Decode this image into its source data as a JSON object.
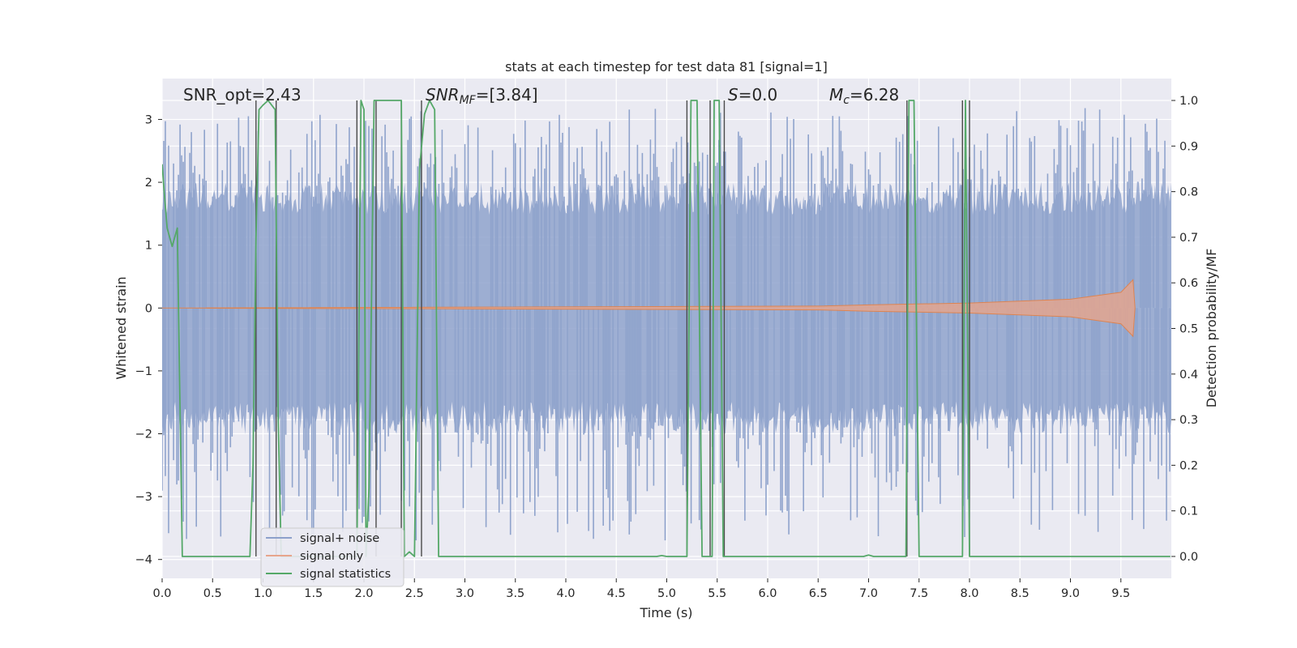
{
  "chart_data": {
    "type": "line",
    "title": "stats at each timestep for test data 81 [signal=1]",
    "xlabel": "Time (s)",
    "ylabel_left": "Whitened strain",
    "ylabel_right": "Detection probability/MF",
    "xlim": [
      0.0,
      10.0
    ],
    "ylim_left": [
      -4.3,
      3.65
    ],
    "ylim_right": [
      -0.048,
      1.048
    ],
    "x_ticks": [
      "0.0",
      "0.5",
      "1.0",
      "1.5",
      "2.0",
      "2.5",
      "3.0",
      "3.5",
      "4.0",
      "4.5",
      "5.0",
      "5.5",
      "6.0",
      "6.5",
      "7.0",
      "7.5",
      "8.0",
      "8.5",
      "9.0",
      "9.5"
    ],
    "y_left_ticks": [
      "−4",
      "−3",
      "−2",
      "−1",
      "0",
      "1",
      "2",
      "3"
    ],
    "y_right_ticks": [
      "0.0",
      "0.1",
      "0.2",
      "0.3",
      "0.4",
      "0.5",
      "0.6",
      "0.7",
      "0.8",
      "0.9",
      "1.0"
    ],
    "grid": true,
    "legend_position": "lower-left",
    "annotations": {
      "snr_opt": "SNR_opt=2.43",
      "snr_mf_name": "SNR",
      "snr_mf_sub": "MF",
      "snr_mf_value": "=[3.84]",
      "s_name": "S",
      "s_value": "=0.0",
      "mc_name": "M",
      "mc_sub": "c",
      "mc_value": "=6.28"
    },
    "series": [
      {
        "name": "signal+ noise",
        "color": "#8da0cb",
        "axis": "left",
        "description_values": {
          "typical_envelope": [
            -1.9,
            1.9
          ],
          "peak_max": 3.2,
          "peak_min": -3.7
        }
      },
      {
        "name": "signal only",
        "color": "#e7a58c",
        "axis": "left",
        "envelope_points": [
          [
            0.0,
            0.0
          ],
          [
            6.5,
            0.03
          ],
          [
            7.0,
            0.05
          ],
          [
            8.0,
            0.08
          ],
          [
            9.0,
            0.14
          ],
          [
            9.5,
            0.25
          ],
          [
            9.62,
            0.45
          ],
          [
            9.64,
            0.0
          ]
        ]
      },
      {
        "name": "signal statistics",
        "color": "#55a868",
        "axis": "right",
        "x": [
          0.0,
          0.02,
          0.05,
          0.1,
          0.15,
          0.2,
          0.25,
          0.87,
          0.9,
          0.93,
          0.96,
          1.0,
          1.05,
          1.12,
          1.15,
          1.18,
          1.2,
          1.9,
          1.93,
          1.97,
          2.0,
          2.02,
          2.05,
          2.1,
          2.15,
          2.2,
          2.37,
          2.4,
          2.45,
          2.5,
          2.55,
          2.6,
          2.65,
          2.7,
          2.74,
          4.9,
          4.95,
          5.0,
          5.2,
          5.24,
          5.3,
          5.35,
          5.38,
          5.42,
          5.45,
          5.47,
          5.52,
          5.56,
          5.6,
          6.95,
          7.0,
          7.05,
          7.37,
          7.4,
          7.45,
          7.5,
          7.53,
          7.93,
          7.96,
          8.0,
          8.04,
          9.99
        ],
        "y": [
          0.86,
          0.8,
          0.72,
          0.68,
          0.72,
          0.0,
          0.0,
          0.0,
          0.2,
          0.7,
          0.98,
          0.99,
          1.0,
          0.98,
          0.3,
          0.0,
          0.0,
          0.0,
          0.0,
          1.0,
          0.98,
          0.0,
          0.15,
          1.0,
          1.0,
          1.0,
          1.0,
          0.0,
          0.01,
          0.0,
          0.85,
          0.97,
          1.0,
          0.98,
          0.0,
          0.0,
          0.002,
          0.0,
          0.0,
          1.0,
          1.0,
          0.0,
          0.0,
          0.0,
          0.0,
          1.0,
          1.0,
          0.0,
          0.0,
          0.0,
          0.003,
          0.0,
          0.0,
          1.0,
          1.0,
          0.0,
          0.0,
          0.0,
          1.0,
          0.0,
          0.0,
          0.0
        ]
      }
    ],
    "vertical_markers_x": [
      0.93,
      1.13,
      1.93,
      2.12,
      2.37,
      2.57,
      5.2,
      5.43,
      5.57,
      7.38,
      7.93,
      8.0
    ]
  }
}
